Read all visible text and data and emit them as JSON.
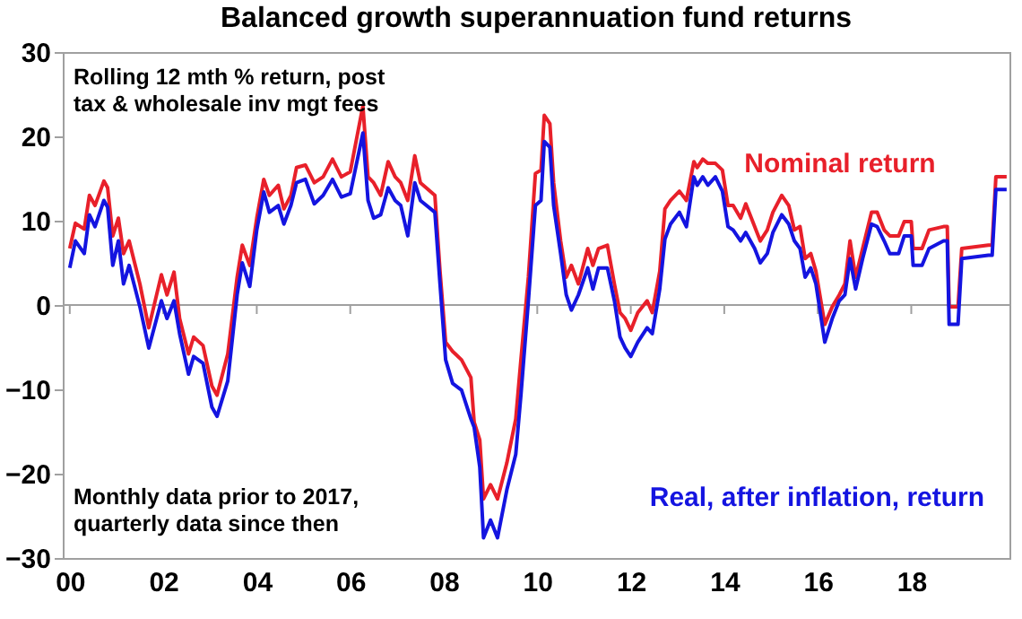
{
  "chart_data": {
    "type": "line",
    "title": "Balanced growth superannuation fund returns",
    "annotations": [
      "Rolling 12 mth % return, post\ntax & wholesale inv mgt fees",
      "Monthly data prior to 2017,\nquarterly data since then"
    ],
    "x": [
      2000.0,
      2000.12,
      2000.31,
      2000.42,
      2000.54,
      2000.73,
      2000.81,
      2000.92,
      2001.04,
      2001.15,
      2001.27,
      2001.5,
      2001.69,
      2001.96,
      2002.08,
      2002.23,
      2002.35,
      2002.54,
      2002.65,
      2002.85,
      2003.04,
      2003.15,
      2003.38,
      2003.58,
      2003.69,
      2003.85,
      2004.0,
      2004.15,
      2004.27,
      2004.46,
      2004.58,
      2004.73,
      2004.85,
      2005.04,
      2005.23,
      2005.42,
      2005.62,
      2005.81,
      2006.0,
      2006.27,
      2006.38,
      2006.5,
      2006.65,
      2006.81,
      2006.96,
      2007.08,
      2007.23,
      2007.38,
      2007.5,
      2007.81,
      2007.92,
      2008.04,
      2008.19,
      2008.38,
      2008.58,
      2008.65,
      2008.77,
      2008.85,
      2009.0,
      2009.15,
      2009.35,
      2009.54,
      2009.65,
      2009.81,
      2009.96,
      2010.08,
      2010.15,
      2010.27,
      2010.35,
      2010.5,
      2010.62,
      2010.73,
      2010.88,
      2011.08,
      2011.19,
      2011.31,
      2011.5,
      2011.65,
      2011.77,
      2011.88,
      2012.0,
      2012.15,
      2012.35,
      2012.46,
      2012.62,
      2012.73,
      2012.85,
      2013.04,
      2013.19,
      2013.35,
      2013.42,
      2013.54,
      2013.65,
      2013.81,
      2013.96,
      2014.08,
      2014.19,
      2014.35,
      2014.46,
      2014.65,
      2014.77,
      2014.92,
      2015.04,
      2015.23,
      2015.38,
      2015.5,
      2015.62,
      2015.73,
      2015.85,
      2015.96,
      2016.15,
      2016.31,
      2016.46,
      2016.58,
      2016.69,
      2016.81,
      2016.96,
      2017.15,
      2017.27,
      2017.42,
      2017.54,
      2017.73,
      2017.85,
      2018.0,
      2018.04,
      2018.23,
      2018.38,
      2018.69,
      2018.77,
      2018.81,
      2019.0,
      2019.08,
      2019.65,
      2019.73,
      2019.81,
      2020.04
    ],
    "series": [
      {
        "name": "Nominal return",
        "color": "#e8202a",
        "values": [
          6.7,
          9.7,
          9.0,
          13.0,
          11.8,
          14.7,
          13.9,
          8.2,
          10.3,
          6.1,
          7.6,
          2.5,
          -2.7,
          3.6,
          1.2,
          3.9,
          -1.6,
          -5.8,
          -3.8,
          -4.8,
          -9.6,
          -10.7,
          -5.8,
          3.3,
          7.1,
          4.7,
          10.3,
          14.9,
          13.0,
          14.2,
          11.4,
          13.0,
          16.3,
          16.6,
          14.5,
          15.2,
          17.3,
          15.2,
          15.8,
          23.6,
          15.2,
          14.5,
          13.0,
          17.0,
          15.2,
          14.5,
          12.4,
          17.7,
          14.5,
          13.0,
          4.0,
          -4.4,
          -5.5,
          -6.5,
          -8.6,
          -13.9,
          -16.0,
          -23.0,
          -21.3,
          -23.0,
          -18.7,
          -13.5,
          -6.5,
          3.3,
          15.6,
          16.0,
          22.5,
          21.5,
          14.5,
          7.6,
          3.3,
          4.7,
          2.5,
          6.7,
          4.7,
          6.7,
          7.1,
          2.5,
          -0.9,
          -1.6,
          -3.0,
          -0.9,
          0.5,
          -0.9,
          4.0,
          11.4,
          12.4,
          13.5,
          12.4,
          17.0,
          16.3,
          17.3,
          16.8,
          16.8,
          16.0,
          11.8,
          11.8,
          10.3,
          12.0,
          9.3,
          7.6,
          8.9,
          11.0,
          13.0,
          11.8,
          8.9,
          9.3,
          5.5,
          6.1,
          4.0,
          -2.3,
          -0.2,
          1.2,
          2.5,
          7.6,
          3.3,
          6.7,
          11.0,
          11.0,
          8.9,
          8.2,
          8.2,
          9.9,
          9.9,
          6.7,
          6.7,
          8.9,
          9.3,
          9.3,
          -0.2,
          -0.2,
          6.7,
          7.1,
          7.1,
          15.2,
          15.2
        ]
      },
      {
        "name": "Real, after inflation, return",
        "color": "#1414e0",
        "values": [
          4.4,
          7.6,
          6.1,
          10.7,
          9.3,
          12.4,
          11.6,
          4.7,
          7.6,
          2.5,
          4.7,
          -0.2,
          -5.1,
          0.5,
          -1.6,
          0.5,
          -3.4,
          -8.2,
          -6.1,
          -6.9,
          -12.1,
          -13.2,
          -9.0,
          1.2,
          5.0,
          2.2,
          8.9,
          13.4,
          11.0,
          11.8,
          9.6,
          11.8,
          14.5,
          14.9,
          12.0,
          13.0,
          14.9,
          12.8,
          13.2,
          20.4,
          12.4,
          10.3,
          10.7,
          13.9,
          12.4,
          11.8,
          8.2,
          14.5,
          12.4,
          11.0,
          2.5,
          -6.5,
          -9.3,
          -10.1,
          -13.5,
          -14.5,
          -19.2,
          -27.6,
          -25.5,
          -27.6,
          -21.9,
          -17.7,
          -10.7,
          0.5,
          11.8,
          12.4,
          19.4,
          18.7,
          11.8,
          6.1,
          1.2,
          -0.6,
          1.2,
          4.4,
          1.9,
          4.4,
          4.4,
          0.5,
          -3.8,
          -5.1,
          -6.1,
          -4.4,
          -2.7,
          -3.4,
          1.9,
          7.8,
          9.6,
          11.0,
          9.3,
          15.2,
          14.2,
          15.2,
          14.2,
          15.2,
          13.5,
          9.3,
          8.9,
          7.6,
          8.6,
          6.7,
          5.0,
          6.1,
          8.6,
          10.7,
          9.6,
          7.6,
          6.7,
          3.3,
          4.4,
          2.5,
          -4.4,
          -1.6,
          0.5,
          1.2,
          5.5,
          1.9,
          5.5,
          9.6,
          9.3,
          7.6,
          6.1,
          6.1,
          8.2,
          8.2,
          4.7,
          4.7,
          6.7,
          7.6,
          7.6,
          -2.3,
          -2.3,
          5.5,
          5.9,
          5.9,
          13.7,
          13.7
        ]
      }
    ],
    "xlim": [
      1999.85,
      2020.1
    ],
    "xticks": [
      {
        "value": 2000,
        "label": "00"
      },
      {
        "value": 2002,
        "label": "02"
      },
      {
        "value": 2004,
        "label": "04"
      },
      {
        "value": 2006,
        "label": "06"
      },
      {
        "value": 2008,
        "label": "08"
      },
      {
        "value": 2010,
        "label": "10"
      },
      {
        "value": 2012,
        "label": "12"
      },
      {
        "value": 2014,
        "label": "14"
      },
      {
        "value": 2016,
        "label": "16"
      },
      {
        "value": 2018,
        "label": "18"
      }
    ],
    "ylim": [
      -30,
      30
    ],
    "yticks": [
      -30,
      -20,
      -10,
      0,
      10,
      20,
      30
    ],
    "ref_lines": [
      {
        "axis": "y",
        "value": 0,
        "color": "#a0a0a0"
      }
    ],
    "grid": false,
    "legend": false,
    "marker": "none",
    "line_style": "solid"
  }
}
